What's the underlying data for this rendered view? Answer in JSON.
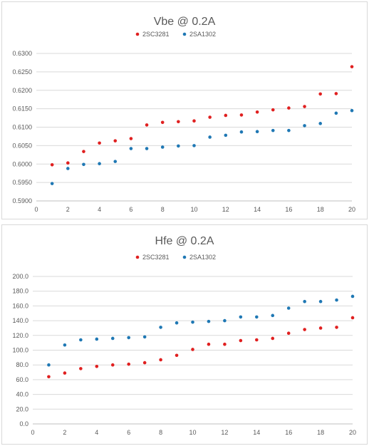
{
  "chart_data": [
    {
      "type": "scatter",
      "title": "Vbe @ 0.2A",
      "xlabel": "",
      "ylabel": "",
      "xlim": [
        0,
        20
      ],
      "ylim": [
        0.59,
        0.63
      ],
      "x_ticks": [
        "0",
        "2",
        "4",
        "6",
        "8",
        "10",
        "12",
        "14",
        "16",
        "18",
        "20"
      ],
      "y_ticks": [
        "0.5900",
        "0.5950",
        "0.6000",
        "0.6050",
        "0.6100",
        "0.6150",
        "0.6200",
        "0.6250",
        "0.6300"
      ],
      "grid": true,
      "legend_position": "top",
      "series": [
        {
          "name": "2SC3281",
          "color": "#e02020",
          "x": [
            1,
            2,
            3,
            4,
            5,
            6,
            7,
            8,
            9,
            10,
            11,
            12,
            13,
            14,
            15,
            16,
            17,
            18,
            19,
            20
          ],
          "y": [
            0.5998,
            0.6003,
            0.6034,
            0.6057,
            0.6063,
            0.6069,
            0.6106,
            0.6113,
            0.6115,
            0.6117,
            0.6127,
            0.6132,
            0.6133,
            0.6141,
            0.6147,
            0.6152,
            0.6156,
            0.619,
            0.6191,
            0.6264
          ]
        },
        {
          "name": "2SA1302",
          "color": "#1f78b4",
          "x": [
            1,
            2,
            3,
            4,
            5,
            6,
            7,
            8,
            9,
            10,
            11,
            12,
            13,
            14,
            15,
            16,
            17,
            18,
            19,
            20
          ],
          "y": [
            0.5947,
            0.5988,
            0.5999,
            0.6001,
            0.6007,
            0.6042,
            0.6042,
            0.6046,
            0.6049,
            0.605,
            0.6073,
            0.6078,
            0.6087,
            0.6088,
            0.6091,
            0.6091,
            0.6104,
            0.611,
            0.6138,
            0.6145
          ]
        }
      ]
    },
    {
      "type": "scatter",
      "title": "Hfe @ 0.2A",
      "xlabel": "",
      "ylabel": "",
      "xlim": [
        0,
        20
      ],
      "ylim": [
        0,
        200
      ],
      "x_ticks": [
        "0",
        "2",
        "4",
        "6",
        "8",
        "10",
        "12",
        "14",
        "16",
        "18",
        "20"
      ],
      "y_ticks": [
        "0.0",
        "20.0",
        "40.0",
        "60.0",
        "80.0",
        "100.0",
        "120.0",
        "140.0",
        "160.0",
        "180.0",
        "200.0"
      ],
      "grid": true,
      "legend_position": "top",
      "series": [
        {
          "name": "2SC3281",
          "color": "#e02020",
          "x": [
            1,
            2,
            3,
            4,
            5,
            6,
            7,
            8,
            9,
            10,
            11,
            12,
            13,
            14,
            15,
            16,
            17,
            18,
            19,
            20
          ],
          "y": [
            64,
            69,
            75,
            78,
            80,
            81,
            83,
            87,
            93,
            101,
            108,
            108,
            113,
            114,
            116,
            123,
            128,
            130,
            131,
            144
          ]
        },
        {
          "name": "2SA1302",
          "color": "#1f78b4",
          "x": [
            1,
            2,
            3,
            4,
            5,
            6,
            7,
            8,
            9,
            10,
            11,
            12,
            13,
            14,
            15,
            16,
            17,
            18,
            19,
            20
          ],
          "y": [
            80,
            107,
            114,
            115,
            116,
            117,
            118,
            131,
            137,
            138,
            139,
            140,
            145,
            145,
            147,
            157,
            166,
            166,
            168,
            173
          ]
        }
      ]
    }
  ]
}
